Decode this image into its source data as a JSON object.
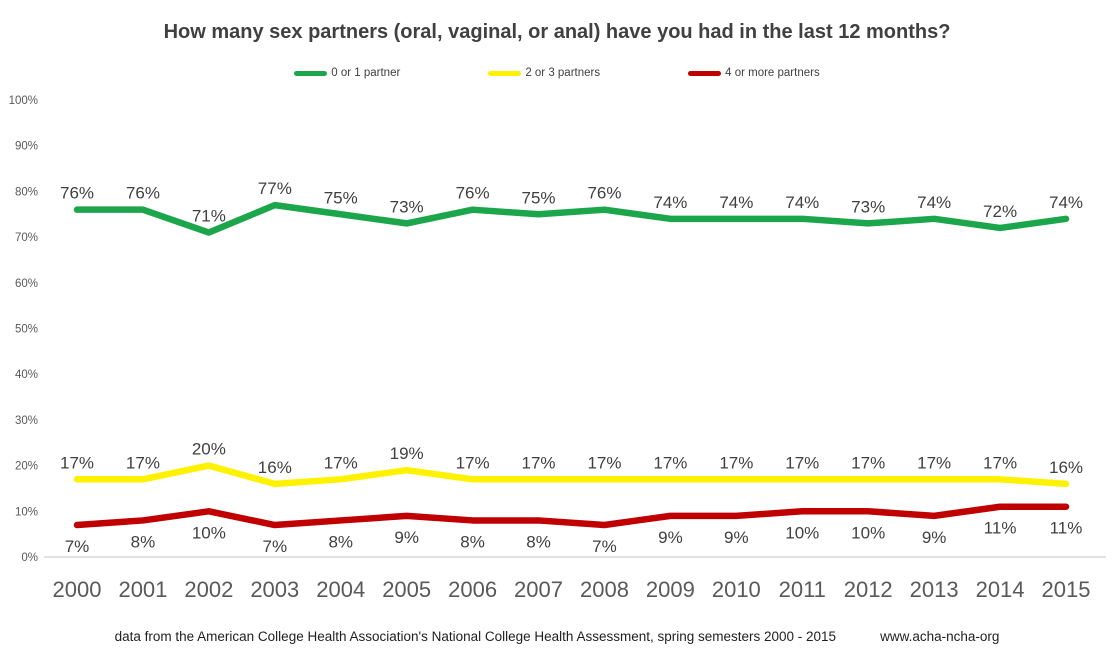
{
  "title": "How many sex partners (oral, vaginal, or anal) have you had in the last 12 months?",
  "footer": {
    "source": "data from the American College Health Association's National College Health Assessment, spring semesters 2000 - 2015",
    "site": "www.acha-ncha-org"
  },
  "chart_data": {
    "type": "line",
    "title": "How many sex partners (oral, vaginal, or anal) have you had in the last 12 months?",
    "categories": [
      2000,
      2001,
      2002,
      2003,
      2004,
      2005,
      2006,
      2007,
      2008,
      2009,
      2010,
      2011,
      2012,
      2013,
      2014,
      2015
    ],
    "series": [
      {
        "name": "0 or 1 partner",
        "color": "#1CA64C",
        "label_position": "above",
        "values": [
          76,
          76,
          71,
          77,
          75,
          73,
          76,
          75,
          76,
          74,
          74,
          74,
          73,
          74,
          72,
          74
        ]
      },
      {
        "name": "2 or 3 partners",
        "color": "#FFF200",
        "label_position": "above",
        "values": [
          17,
          17,
          20,
          16,
          17,
          19,
          17,
          17,
          17,
          17,
          17,
          17,
          17,
          17,
          17,
          16
        ]
      },
      {
        "name": "4 or more partners",
        "color": "#C00000",
        "label_position": "below",
        "values": [
          7,
          8,
          10,
          7,
          8,
          9,
          8,
          8,
          7,
          9,
          9,
          10,
          10,
          9,
          11,
          11
        ]
      }
    ],
    "xlabel": "",
    "ylabel": "",
    "y_axis": {
      "min": 0,
      "max": 100,
      "step": 10,
      "unit": "%"
    },
    "data_label_suffix": "%",
    "grid": false,
    "legend_position": "top",
    "colors": {
      "axis_line": "#d9d9d9",
      "tick_label": "#595959",
      "year_label": "#595959",
      "data_label": "#404040"
    }
  }
}
